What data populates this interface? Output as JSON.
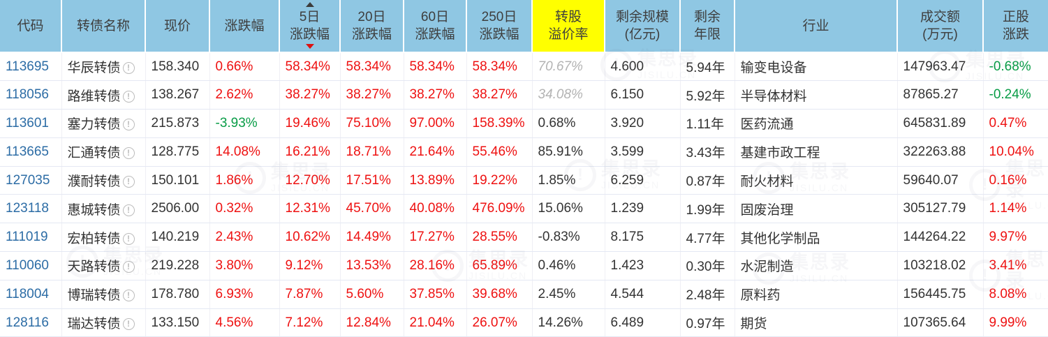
{
  "watermark": {
    "brand": "集思录",
    "domain": "JISILU.CN",
    "logo_glyph": "!"
  },
  "header": {
    "columns": [
      {
        "key": "code",
        "label": "代码"
      },
      {
        "key": "name",
        "label": "转债名称"
      },
      {
        "key": "price",
        "label": "现价"
      },
      {
        "key": "chg",
        "label": "涨跌幅"
      },
      {
        "key": "chg5",
        "label": "5日\n涨跌幅",
        "sort": "desc"
      },
      {
        "key": "chg20",
        "label": "20日\n涨跌幅"
      },
      {
        "key": "chg60",
        "label": "60日\n涨跌幅"
      },
      {
        "key": "chg250",
        "label": "250日\n涨跌幅"
      },
      {
        "key": "premium",
        "label": "转股\n溢价率",
        "highlight": "#ffff00"
      },
      {
        "key": "size",
        "label": "剩余规模\n(亿元)"
      },
      {
        "key": "years",
        "label": "剩余\n年限"
      },
      {
        "key": "industry",
        "label": "行业"
      },
      {
        "key": "turnover",
        "label": "成交额\n(万元)"
      },
      {
        "key": "stock",
        "label": "正股\n涨跌"
      }
    ]
  },
  "colors": {
    "header_bg": "#8fc7e3",
    "premium_header_bg": "#ffff00",
    "positive": "#ee1111",
    "negative": "#089c46",
    "code_link": "#2c6ca5",
    "estimated_premium": "#b3b3b3"
  },
  "rows": [
    {
      "code": "113695",
      "name": "华辰转债",
      "warn": false,
      "price": "158.340",
      "chg": "0.66%",
      "chg5": "58.34%",
      "chg20": "58.34%",
      "chg60": "58.34%",
      "chg250": "58.34%",
      "premium": "70.67%",
      "premium_est": true,
      "size": "4.600",
      "years": "5.94年",
      "industry": "输变电设备",
      "turnover": "147963.47",
      "stock": "-0.68%"
    },
    {
      "code": "118056",
      "name": "路维转债",
      "warn": false,
      "price": "138.267",
      "chg": "2.62%",
      "chg5": "38.27%",
      "chg20": "38.27%",
      "chg60": "38.27%",
      "chg250": "38.27%",
      "premium": "34.08%",
      "premium_est": true,
      "size": "6.150",
      "years": "5.92年",
      "industry": "半导体材料",
      "turnover": "87865.27",
      "stock": "-0.24%"
    },
    {
      "code": "113601",
      "name": "塞力转债",
      "warn": false,
      "price": "215.873",
      "chg": "-3.93%",
      "chg5": "19.46%",
      "chg20": "75.10%",
      "chg60": "97.00%",
      "chg250": "158.39%",
      "premium": "0.68%",
      "premium_est": false,
      "size": "3.920",
      "years": "1.11年",
      "industry": "医药流通",
      "turnover": "645831.89",
      "stock": "0.47%"
    },
    {
      "code": "113665",
      "name": "汇通转债",
      "warn": false,
      "price": "128.775",
      "chg": "14.08%",
      "chg5": "16.21%",
      "chg20": "18.71%",
      "chg60": "21.64%",
      "chg250": "55.46%",
      "premium": "85.91%",
      "premium_est": false,
      "size": "3.599",
      "years": "3.43年",
      "industry": "基建市政工程",
      "turnover": "322263.88",
      "stock": "10.04%"
    },
    {
      "code": "127035",
      "name": "濮耐转债",
      "warn": false,
      "price": "150.101",
      "chg": "1.86%",
      "chg5": "12.70%",
      "chg20": "17.51%",
      "chg60": "13.89%",
      "chg250": "19.22%",
      "premium": "1.85%",
      "premium_est": false,
      "size": "6.259",
      "years": "0.87年",
      "industry": "耐火材料",
      "turnover": "59640.07",
      "stock": "0.16%"
    },
    {
      "code": "123118",
      "name": "惠城转债",
      "warn": true,
      "price": "2506.00",
      "chg": "0.32%",
      "chg5": "12.31%",
      "chg20": "45.70%",
      "chg60": "40.08%",
      "chg250": "476.09%",
      "premium": "15.06%",
      "premium_est": false,
      "size": "1.239",
      "years": "1.99年",
      "industry": "固废治理",
      "turnover": "305127.79",
      "stock": "1.14%"
    },
    {
      "code": "111019",
      "name": "宏柏转债",
      "warn": false,
      "price": "140.219",
      "chg": "2.43%",
      "chg5": "10.62%",
      "chg20": "14.49%",
      "chg60": "17.27%",
      "chg250": "28.55%",
      "premium": "-0.83%",
      "premium_est": false,
      "size": "8.175",
      "years": "4.77年",
      "industry": "其他化学制品",
      "turnover": "144264.22",
      "stock": "9.97%"
    },
    {
      "code": "110060",
      "name": "天路转债",
      "warn": true,
      "price": "219.228",
      "chg": "3.80%",
      "chg5": "9.12%",
      "chg20": "13.53%",
      "chg60": "28.16%",
      "chg250": "65.89%",
      "premium": "0.46%",
      "premium_est": false,
      "size": "1.423",
      "years": "0.30年",
      "industry": "水泥制造",
      "turnover": "103218.02",
      "stock": "3.41%"
    },
    {
      "code": "118004",
      "name": "博瑞转债",
      "warn": true,
      "price": "178.780",
      "chg": "6.93%",
      "chg5": "7.87%",
      "chg20": "5.60%",
      "chg60": "37.85%",
      "chg250": "39.68%",
      "premium": "2.45%",
      "premium_est": false,
      "size": "4.544",
      "years": "2.48年",
      "industry": "原料药",
      "turnover": "156445.75",
      "stock": "8.08%"
    },
    {
      "code": "128116",
      "name": "瑞达转债",
      "warn": false,
      "price": "133.150",
      "chg": "4.56%",
      "chg5": "7.12%",
      "chg20": "12.84%",
      "chg60": "21.04%",
      "chg250": "26.07%",
      "premium": "14.26%",
      "premium_est": false,
      "size": "6.489",
      "years": "0.97年",
      "industry": "期货",
      "turnover": "107365.64",
      "stock": "9.99%"
    }
  ]
}
